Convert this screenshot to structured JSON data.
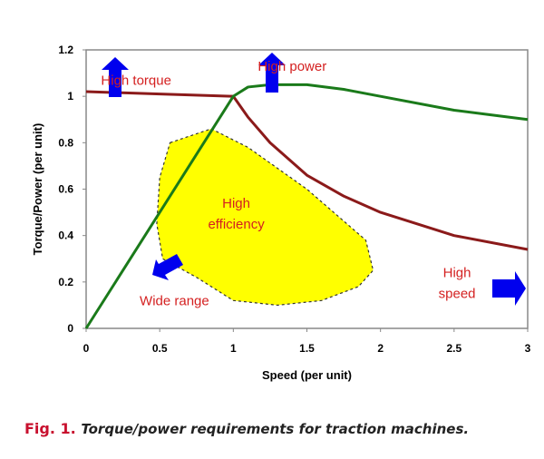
{
  "chart_data": {
    "type": "line",
    "xlabel": "Speed (per unit)",
    "ylabel": "Torque/Power (per unit)",
    "xlim": [
      0,
      3
    ],
    "ylim": [
      0,
      1.2
    ],
    "xticks": [
      "0",
      "0.5",
      "1",
      "1.5",
      "2",
      "2.5",
      "3"
    ],
    "yticks": [
      "0",
      "0.2",
      "0.4",
      "0.6",
      "0.8",
      "1",
      "1.2"
    ],
    "grid": false,
    "series": [
      {
        "color": "#8b1a1a",
        "x": [
          0,
          0.5,
          1,
          1.1,
          1.25,
          1.5,
          1.75,
          2,
          2.5,
          3
        ],
        "y": [
          1.02,
          1.01,
          1.0,
          0.91,
          0.8,
          0.66,
          0.57,
          0.5,
          0.4,
          0.34
        ]
      },
      {
        "color": "#1a7a1a",
        "x": [
          0,
          1,
          1.1,
          1.25,
          1.5,
          1.75,
          2,
          2.5,
          3
        ],
        "y": [
          0,
          1.0,
          1.04,
          1.05,
          1.05,
          1.03,
          1.0,
          0.94,
          0.9
        ]
      }
    ],
    "region": {
      "color": "#ffff00",
      "x": [
        0.57,
        0.85,
        1.1,
        1.5,
        1.9,
        1.95,
        1.85,
        1.6,
        1.3,
        1.0,
        0.75,
        0.52,
        0.48,
        0.5
      ],
      "y": [
        0.8,
        0.86,
        0.78,
        0.6,
        0.38,
        0.25,
        0.18,
        0.12,
        0.1,
        0.12,
        0.22,
        0.3,
        0.45,
        0.65
      ]
    },
    "annotations": [
      {
        "text": "High torque",
        "x": 0.34,
        "y": 1.05
      },
      {
        "text": "High power",
        "x": 1.4,
        "y": 1.11
      },
      {
        "text": "High",
        "x": 1.02,
        "y": 0.52
      },
      {
        "text": "efficiency",
        "x": 1.02,
        "y": 0.43
      },
      {
        "text": "Wide range",
        "x": 0.6,
        "y": 0.1
      },
      {
        "text": "High",
        "x": 2.52,
        "y": 0.22
      },
      {
        "text": "speed",
        "x": 2.52,
        "y": 0.13
      }
    ],
    "annotation_color": "#d42020",
    "arrow_color": "#0000ee"
  },
  "caption": {
    "fig": "Fig. 1.",
    "text": "Torque/power requirements for traction machines."
  }
}
